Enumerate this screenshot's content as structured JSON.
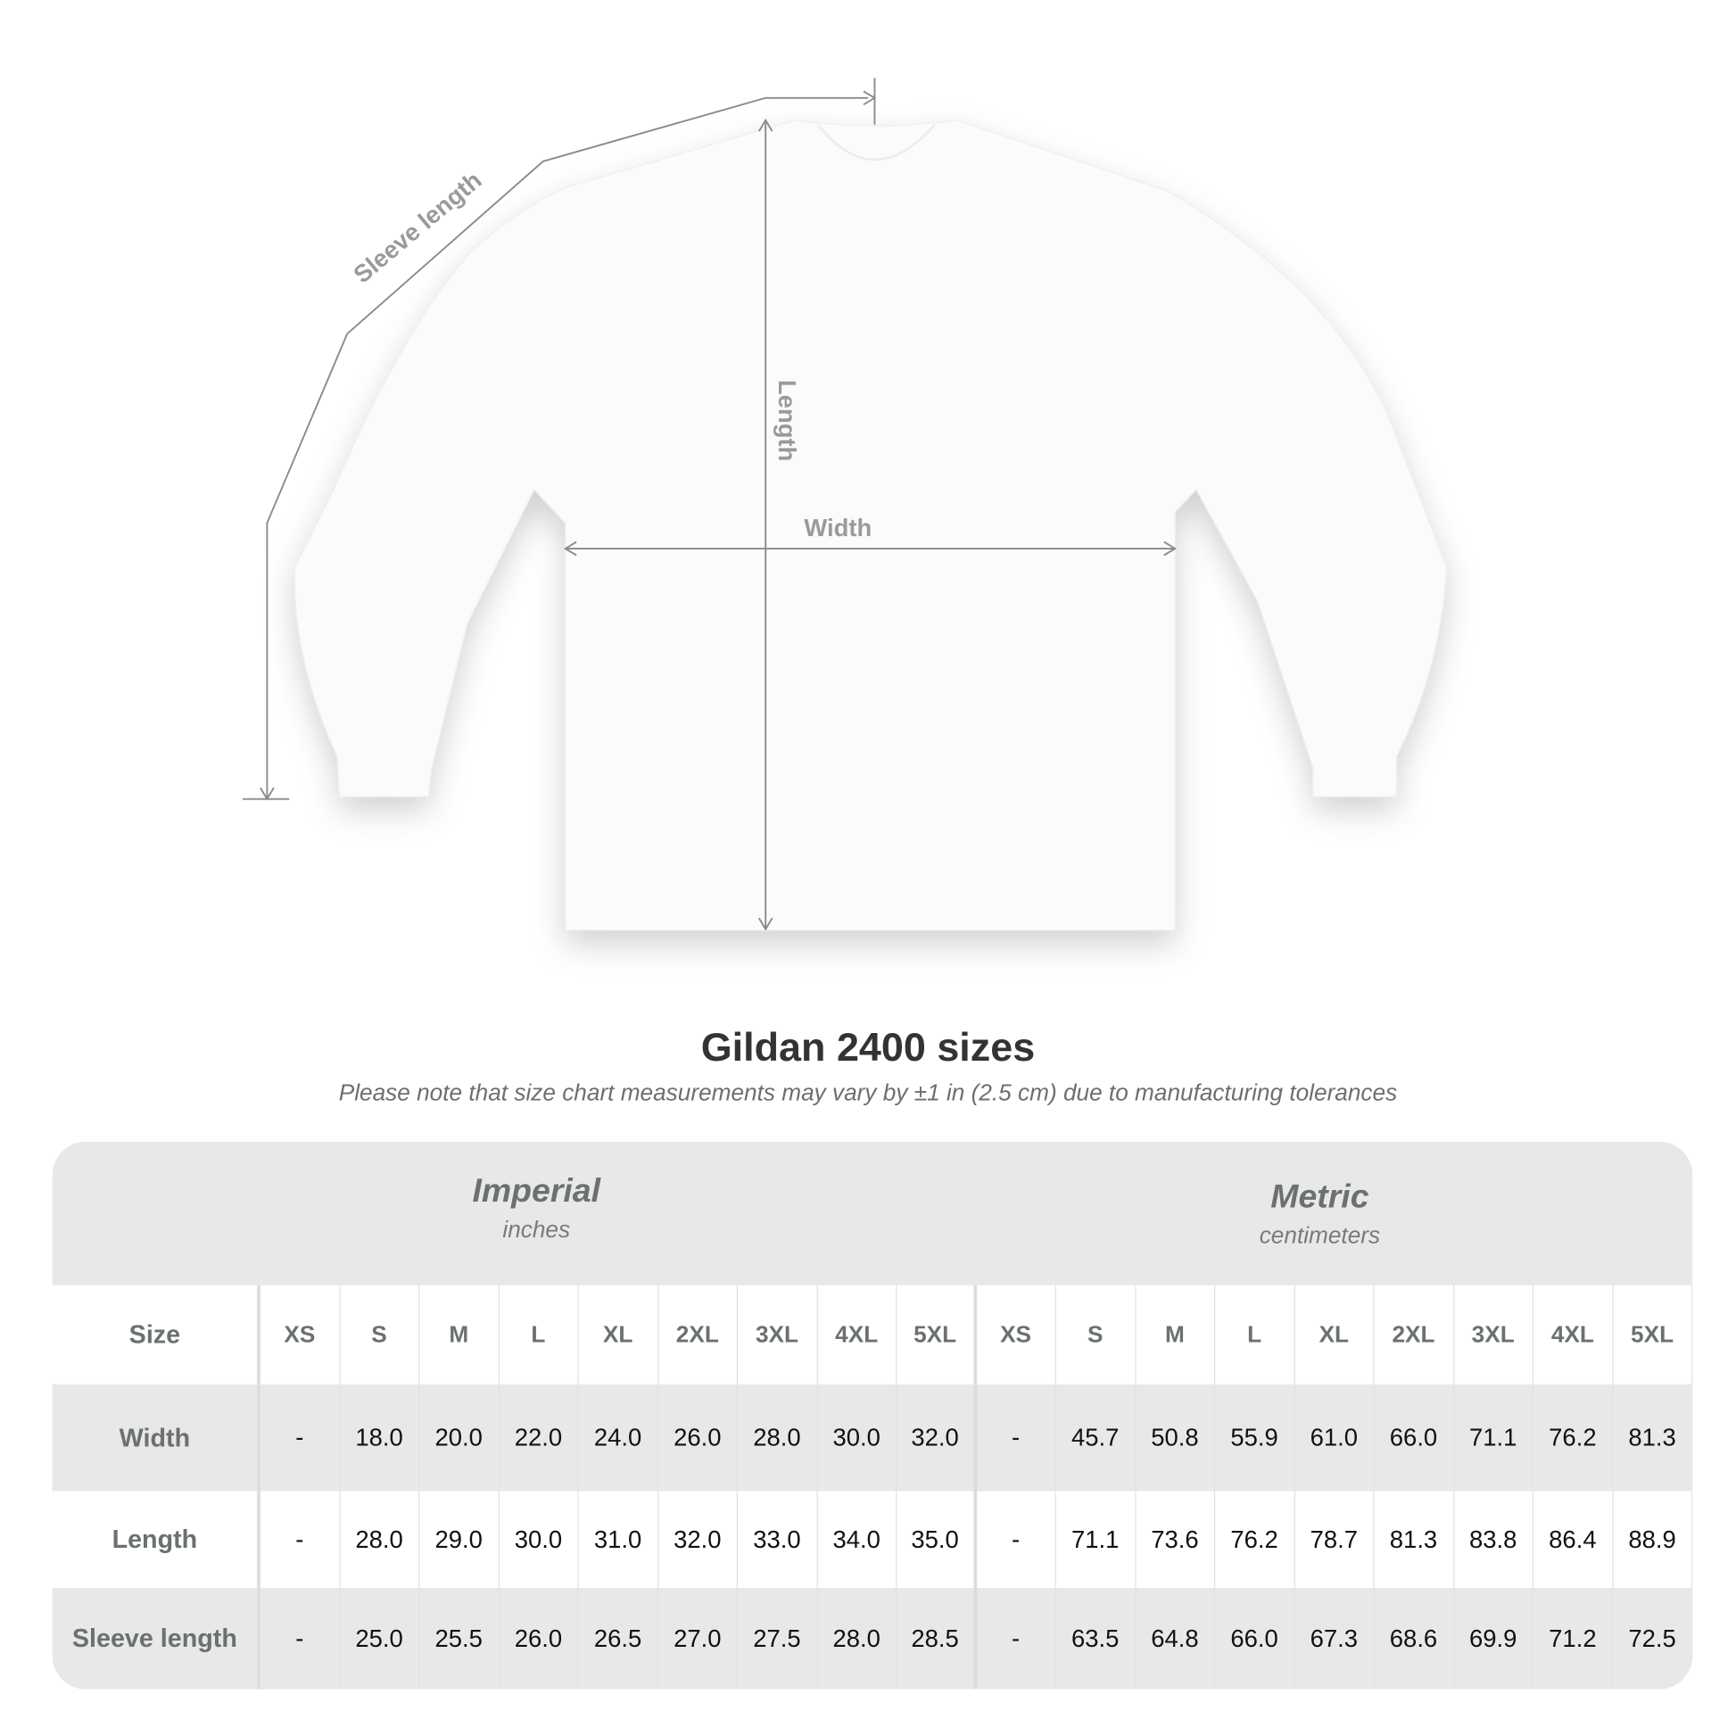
{
  "diagram": {
    "labels": {
      "sleeve": "Sleeve length",
      "length": "Length",
      "width": "Width"
    }
  },
  "title": "Gildan 2400 sizes",
  "subtitle": "Please note that size chart measurements may vary by ±1 in (2.5 cm) due to manufacturing tolerances",
  "table": {
    "imperial": {
      "name": "Imperial",
      "unit": "inches"
    },
    "metric": {
      "name": "Metric",
      "unit": "centimeters"
    },
    "header_label": "Size",
    "sizes": [
      "XS",
      "S",
      "M",
      "L",
      "XL",
      "2XL",
      "3XL",
      "4XL",
      "5XL",
      "XS",
      "S",
      "M",
      "L",
      "XL",
      "2XL",
      "3XL",
      "4XL",
      "5XL"
    ],
    "rows": [
      {
        "label": "Width",
        "values": [
          "-",
          "18.0",
          "20.0",
          "22.0",
          "24.0",
          "26.0",
          "28.0",
          "30.0",
          "32.0",
          "-",
          "45.7",
          "50.8",
          "55.9",
          "61.0",
          "66.0",
          "71.1",
          "76.2",
          "81.3"
        ]
      },
      {
        "label": "Length",
        "values": [
          "-",
          "28.0",
          "29.0",
          "30.0",
          "31.0",
          "32.0",
          "33.0",
          "34.0",
          "35.0",
          "-",
          "71.1",
          "73.6",
          "76.2",
          "78.7",
          "81.3",
          "83.8",
          "86.4",
          "88.9"
        ]
      },
      {
        "label": "Sleeve length",
        "values": [
          "-",
          "25.0",
          "25.5",
          "26.0",
          "26.5",
          "27.0",
          "27.5",
          "28.0",
          "28.5",
          "-",
          "63.5",
          "64.8",
          "66.0",
          "67.3",
          "68.6",
          "69.9",
          "71.2",
          "72.5"
        ]
      }
    ]
  }
}
